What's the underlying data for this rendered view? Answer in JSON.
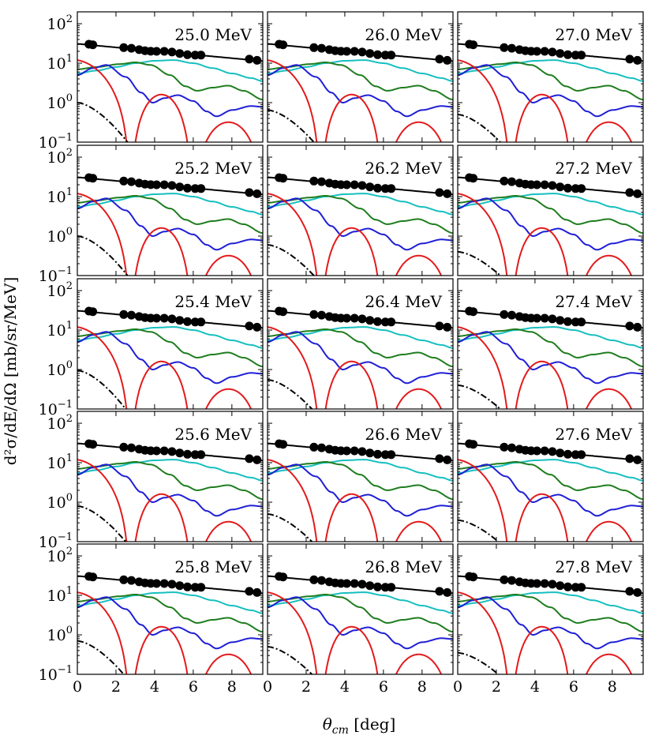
{
  "chart_data": {
    "type": "line",
    "layout": {
      "rows": 5,
      "cols": 3
    },
    "xlabel": "θcm [deg]",
    "xlabel_parts": {
      "symbol": "θ",
      "subscript": "cm",
      "unit": " [deg]"
    },
    "ylabel": "d²σ/dE/dΩ [mb/sr/MeV]",
    "xlim": [
      0,
      9.6
    ],
    "ylim": [
      0.1,
      200
    ],
    "yscale": "log",
    "xticks": [
      0,
      2,
      4,
      6,
      8
    ],
    "yticks": [
      {
        "value": 100,
        "mantissa": "10",
        "exp": "2"
      },
      {
        "value": 10,
        "mantissa": "10",
        "exp": "1"
      },
      {
        "value": 1,
        "mantissa": "10",
        "exp": "0"
      },
      {
        "value": 0.1,
        "mantissa": "10",
        "exp": "−1"
      }
    ],
    "series_styles": [
      {
        "key": "total",
        "color": "#000000",
        "dash": "solid"
      },
      {
        "key": "l0",
        "color": "#e31a1c",
        "dash": "solid"
      },
      {
        "key": "l1",
        "color": "#1f1fd6",
        "dash": "solid"
      },
      {
        "key": "l2",
        "color": "#1e7d1e",
        "dash": "solid"
      },
      {
        "key": "l3",
        "color": "#17bfbf",
        "dash": "solid"
      },
      {
        "key": "nonres",
        "color": "#000000",
        "dash": "dashdot"
      }
    ],
    "data_points_theta": [
      0.6,
      0.8,
      2.4,
      2.8,
      3.2,
      3.5,
      3.8,
      4.1,
      4.5,
      4.9,
      5.3,
      5.7,
      6.1,
      6.4,
      8.9,
      9.3
    ],
    "panels": [
      {
        "label": "25.0 MeV",
        "nonres0": 1.0,
        "nonresEnd": 2.6
      },
      {
        "label": "26.0 MeV",
        "nonres0": 0.65,
        "nonresEnd": 2.4
      },
      {
        "label": "27.0 MeV",
        "nonres0": 0.5,
        "nonresEnd": 2.2
      },
      {
        "label": "25.2 MeV",
        "nonres0": 1.0,
        "nonresEnd": 2.6
      },
      {
        "label": "26.2 MeV",
        "nonres0": 0.6,
        "nonresEnd": 2.4
      },
      {
        "label": "27.2 MeV",
        "nonres0": 0.4,
        "nonresEnd": 2.2
      },
      {
        "label": "25.4 MeV",
        "nonres0": 0.95,
        "nonresEnd": 2.5
      },
      {
        "label": "26.4 MeV",
        "nonres0": 0.55,
        "nonresEnd": 2.3
      },
      {
        "label": "27.4 MeV",
        "nonres0": 0.4,
        "nonresEnd": 2.2
      },
      {
        "label": "25.6 MeV",
        "nonres0": 0.8,
        "nonresEnd": 2.5
      },
      {
        "label": "26.6 MeV",
        "nonres0": 0.5,
        "nonresEnd": 2.3
      },
      {
        "label": "27.6 MeV",
        "nonres0": 0.35,
        "nonresEnd": 2.1
      },
      {
        "label": "25.8 MeV",
        "nonres0": 0.7,
        "nonresEnd": 2.4
      },
      {
        "label": "26.8 MeV",
        "nonres0": 0.5,
        "nonresEnd": 2.3
      },
      {
        "label": "27.8 MeV",
        "nonres0": 0.35,
        "nonresEnd": 2.1
      }
    ]
  }
}
